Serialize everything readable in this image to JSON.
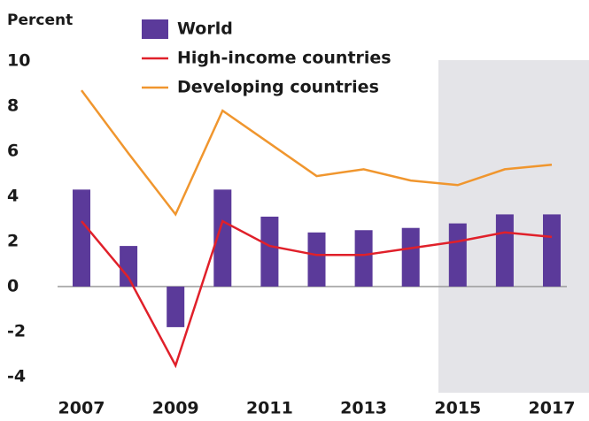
{
  "chart_data": {
    "type": "bar-line",
    "y_label": "Percent",
    "categories": [
      "2007",
      null,
      "2009",
      null,
      "2011",
      null,
      "2013",
      null,
      "2015",
      null,
      "2017"
    ],
    "series": [
      {
        "name": "World",
        "type": "bar",
        "color": "#5b3a9a",
        "values": [
          4.3,
          1.8,
          -1.8,
          4.3,
          3.1,
          2.4,
          2.5,
          2.6,
          2.8,
          3.2,
          3.2
        ]
      },
      {
        "name": "High-income countries",
        "type": "line",
        "color": "#e0202a",
        "values": [
          2.9,
          0.4,
          -3.5,
          2.9,
          1.8,
          1.4,
          1.4,
          1.7,
          2.0,
          2.4,
          2.2
        ]
      },
      {
        "name": "Developing countries",
        "type": "line",
        "color": "#f0962e",
        "values": [
          8.7,
          5.9,
          3.2,
          7.8,
          6.35,
          4.9,
          5.2,
          4.7,
          4.5,
          5.2,
          5.4
        ]
      }
    ],
    "ylim": [
      -4,
      10
    ],
    "yticks": [
      -4,
      -2,
      0,
      2,
      4,
      6,
      8,
      10
    ]
  }
}
